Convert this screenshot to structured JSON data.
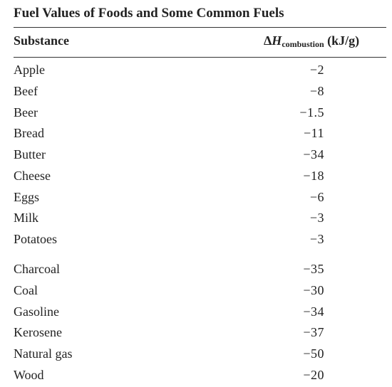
{
  "table": {
    "title": "Fuel Values of Foods and Some Common Fuels",
    "header": {
      "substance": "Substance",
      "delta_symbol": "Δ",
      "h_symbol": "H",
      "subscript": "combustion",
      "unit": "(kJ/g)"
    },
    "foods": [
      {
        "substance": "Apple",
        "value": "−2"
      },
      {
        "substance": "Beef",
        "value": "−8"
      },
      {
        "substance": "Beer",
        "value": "−1.5"
      },
      {
        "substance": "Bread",
        "value": "−11"
      },
      {
        "substance": "Butter",
        "value": "−34"
      },
      {
        "substance": "Cheese",
        "value": "−18"
      },
      {
        "substance": "Eggs",
        "value": "−6"
      },
      {
        "substance": "Milk",
        "value": "−3"
      },
      {
        "substance": "Potatoes",
        "value": "−3"
      }
    ],
    "fuels": [
      {
        "substance": "Charcoal",
        "value": "−35"
      },
      {
        "substance": "Coal",
        "value": "−30"
      },
      {
        "substance": "Gasoline",
        "value": "−34"
      },
      {
        "substance": "Kerosene",
        "value": "−37"
      },
      {
        "substance": "Natural gas",
        "value": "−50"
      },
      {
        "substance": "Wood",
        "value": "−20"
      }
    ]
  }
}
